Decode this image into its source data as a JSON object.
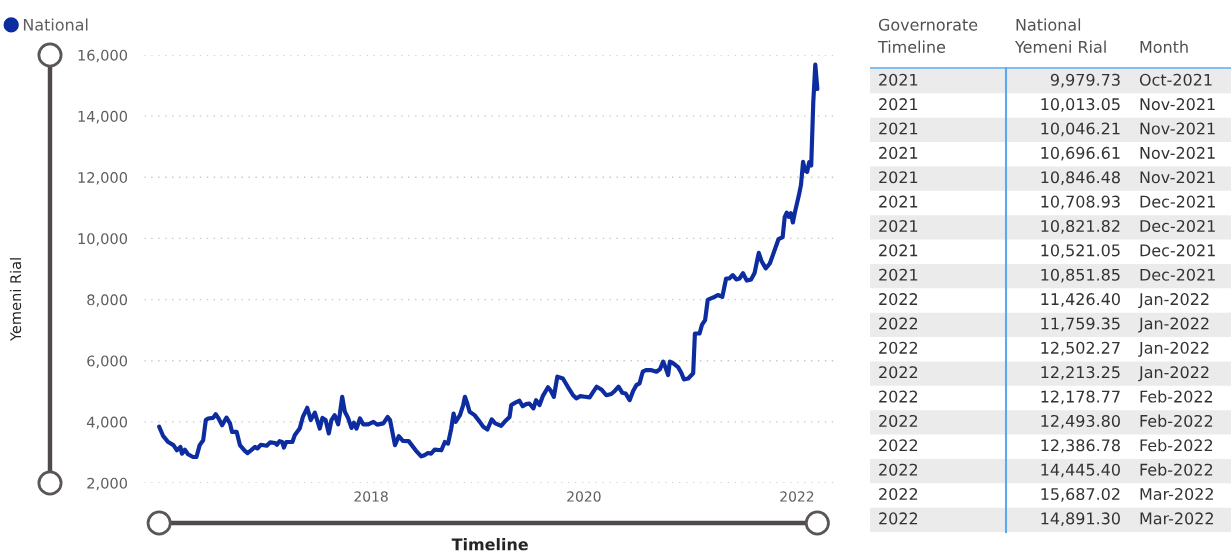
{
  "chart_data": [
    {
      "type": "line",
      "xlabel": "Timeline",
      "ylabel": "Yemeni Rial",
      "x": [
        "2016-01-05",
        "2016-01-19",
        "2016-02-05",
        "2016-02-23",
        "2016-03-06",
        "2016-03-18",
        "2016-03-23",
        "2016-04-02",
        "2016-04-13",
        "2016-04-30",
        "2016-05-12",
        "2016-05-23",
        "2016-06-04",
        "2016-06-13",
        "2016-06-21",
        "2016-07-08",
        "2016-07-17",
        "2016-07-25",
        "2016-08-08",
        "2016-08-23",
        "2016-09-04",
        "2016-09-11",
        "2016-09-27",
        "2016-10-08",
        "2016-10-25",
        "2016-11-03",
        "2016-11-15",
        "2016-11-29",
        "2016-12-07",
        "2016-12-19",
        "2017-01-08",
        "2017-01-20",
        "2017-02-06",
        "2017-02-12",
        "2017-02-21",
        "2017-03-02",
        "2017-03-08",
        "2017-03-16",
        "2017-04-06",
        "2017-04-14",
        "2017-05-01",
        "2017-05-12",
        "2017-05-27",
        "2017-06-08",
        "2017-06-22",
        "2017-07-09",
        "2017-07-18",
        "2017-07-29",
        "2017-08-09",
        "2017-08-18",
        "2017-08-29",
        "2017-09-10",
        "2017-09-16",
        "2017-09-24",
        "2017-10-03",
        "2017-10-14",
        "2017-10-26",
        "2017-11-03",
        "2017-11-12",
        "2017-11-24",
        "2017-12-05",
        "2017-12-22",
        "2018-01-09",
        "2018-01-22",
        "2018-02-12",
        "2018-02-27",
        "2018-03-07",
        "2018-03-16",
        "2018-03-24",
        "2018-04-06",
        "2018-04-20",
        "2018-05-10",
        "2018-06-03",
        "2018-06-22",
        "2018-07-03",
        "2018-07-15",
        "2018-07-26",
        "2018-08-07",
        "2018-08-30",
        "2018-09-11",
        "2018-09-22",
        "2018-10-03",
        "2018-10-11",
        "2018-10-18",
        "2018-11-02",
        "2018-11-13",
        "2018-11-19",
        "2018-11-27",
        "2018-12-05",
        "2018-12-22",
        "2019-01-09",
        "2019-01-21",
        "2019-02-04",
        "2019-02-19",
        "2019-03-03",
        "2019-03-23",
        "2019-04-04",
        "2019-04-21",
        "2019-04-27",
        "2019-05-11",
        "2019-05-25",
        "2019-06-05",
        "2019-06-17",
        "2019-06-28",
        "2019-07-12",
        "2019-07-21",
        "2019-08-02",
        "2019-08-13",
        "2019-08-31",
        "2019-09-08",
        "2019-09-20",
        "2019-10-02",
        "2019-10-21",
        "2019-11-08",
        "2019-11-25",
        "2019-12-06",
        "2019-12-20",
        "2020-01-04",
        "2020-01-21",
        "2020-02-02",
        "2020-02-14",
        "2020-03-01",
        "2020-03-18",
        "2020-04-04",
        "2020-04-16",
        "2020-04-29",
        "2020-05-12",
        "2020-05-23",
        "2020-06-06",
        "2020-06-18",
        "2020-06-29",
        "2020-07-10",
        "2020-07-21",
        "2020-08-01",
        "2020-08-20",
        "2020-09-06",
        "2020-09-18",
        "2020-09-29",
        "2020-10-08",
        "2020-10-16",
        "2020-10-22",
        "2020-11-03",
        "2020-11-20",
        "2020-12-01",
        "2020-12-09",
        "2020-12-24",
        "2021-01-10",
        "2021-01-16",
        "2021-02-01",
        "2021-02-09",
        "2021-02-20",
        "2021-03-01",
        "2021-03-12",
        "2021-03-24",
        "2021-04-05",
        "2021-04-20",
        "2021-05-03",
        "2021-05-14",
        "2021-05-26",
        "2021-06-07",
        "2021-06-18",
        "2021-06-30",
        "2021-07-13",
        "2021-07-28",
        "2021-08-09",
        "2021-08-23",
        "2021-09-01",
        "2021-09-16",
        "2021-09-30",
        "2021-10-30",
        "2021-11-06",
        "2021-11-13",
        "2021-11-20",
        "2021-11-27",
        "2021-12-04",
        "2021-12-11",
        "2021-12-18",
        "2021-12-25",
        "2022-01-08",
        "2022-01-15",
        "2022-01-22",
        "2022-01-29",
        "2022-02-05",
        "2022-02-12",
        "2022-02-19",
        "2022-02-26",
        "2022-03-05",
        "2022-03-12"
      ],
      "series": [
        {
          "name": "National",
          "color": "#0d2c9f",
          "values": [
            3840,
            3530,
            3340,
            3240,
            3070,
            3180,
            2960,
            3090,
            2940,
            2850,
            2850,
            3240,
            3400,
            4060,
            4110,
            4130,
            4250,
            4140,
            3890,
            4140,
            3950,
            3670,
            3670,
            3240,
            3050,
            2980,
            3070,
            3180,
            3130,
            3250,
            3220,
            3330,
            3310,
            3250,
            3370,
            3340,
            3160,
            3340,
            3340,
            3560,
            3780,
            4160,
            4460,
            4060,
            4300,
            3780,
            4130,
            4060,
            3620,
            4060,
            4220,
            3920,
            4270,
            4820,
            4330,
            4130,
            3800,
            3970,
            3780,
            4110,
            3920,
            3920,
            4000,
            3910,
            3950,
            4160,
            4060,
            3620,
            3240,
            3530,
            3380,
            3370,
            3070,
            2870,
            2910,
            2980,
            2960,
            3090,
            3070,
            3340,
            3290,
            3780,
            4270,
            4000,
            4220,
            4550,
            4820,
            4600,
            4330,
            4220,
            4000,
            3840,
            3750,
            4080,
            3950,
            3870,
            4000,
            4160,
            4550,
            4630,
            4690,
            4510,
            4580,
            4600,
            4440,
            4710,
            4550,
            4840,
            5130,
            5040,
            4820,
            5480,
            5420,
            5130,
            4870,
            4770,
            4840,
            4820,
            4800,
            4980,
            5150,
            5060,
            4870,
            4910,
            5010,
            5150,
            4950,
            4930,
            4710,
            5010,
            5200,
            5260,
            5640,
            5690,
            5690,
            5640,
            5720,
            5970,
            5750,
            5530,
            5970,
            5910,
            5780,
            5590,
            5390,
            5420,
            5590,
            6890,
            6890,
            7170,
            7330,
            7990,
            8040,
            8090,
            8150,
            8090,
            8690,
            8690,
            8800,
            8660,
            8690,
            8860,
            8620,
            8660,
            8880,
            9530,
            9270,
            9020,
            9180,
            9979.73,
            10013.05,
            10046.21,
            10696.61,
            10846.48,
            10708.93,
            10821.82,
            10521.05,
            10851.85,
            11426.4,
            11759.35,
            12502.27,
            12213.25,
            12178.77,
            12493.8,
            12386.78,
            14445.4,
            15687.02,
            14891.3
          ]
        }
      ],
      "xlim": [
        "2015-11-15",
        "2022-05-15"
      ],
      "xticks": [
        "2018",
        "2020",
        "2022"
      ],
      "ylim": [
        2000,
        16000
      ],
      "yticks": [
        {
          "value": 2000,
          "label": "2,000"
        },
        {
          "value": 4000,
          "label": "4,000"
        },
        {
          "value": 6000,
          "label": "6,000"
        },
        {
          "value": 8000,
          "label": "8,000"
        },
        {
          "value": 10000,
          "label": "10,000"
        },
        {
          "value": 12000,
          "label": "12,000"
        },
        {
          "value": 14000,
          "label": "14,000"
        },
        {
          "value": 16000,
          "label": "16,000"
        }
      ],
      "grid": "y",
      "legend": "top left",
      "line_style": "solid"
    },
    {
      "type": "other",
      "ylabel": "Month",
      "categories": [
        "Oct-2021",
        "Nov-2021",
        "Nov-2021",
        "Nov-2021",
        "Nov-2021",
        "Dec-2021",
        "Dec-2021",
        "Dec-2021",
        "Dec-2021",
        "Jan-2022",
        "Jan-2022",
        "Jan-2022",
        "Jan-2022",
        "Feb-2022",
        "Feb-2022",
        "Feb-2022",
        "Feb-2022",
        "Mar-2022",
        "Mar-2022"
      ],
      "series": [
        {
          "name": "Governorate Timeline",
          "values": [
            2021,
            2021,
            2021,
            2021,
            2021,
            2021,
            2021,
            2021,
            2021,
            2022,
            2022,
            2022,
            2022,
            2022,
            2022,
            2022,
            2022,
            2022,
            2022
          ]
        },
        {
          "name": "National Yemeni Rial",
          "values": [
            9979.73,
            10013.05,
            10046.21,
            10696.61,
            10846.48,
            10708.93,
            10821.82,
            10521.05,
            10851.85,
            11426.4,
            11759.35,
            12502.27,
            12213.25,
            12178.77,
            12493.8,
            12386.78,
            14445.4,
            15687.02,
            14891.3
          ],
          "value_labels": [
            "9,979.73",
            "10,013.05",
            "10,046.21",
            "10,696.61",
            "10,846.48",
            "10,708.93",
            "10,821.82",
            "10,521.05",
            "10,851.85",
            "11,426.40",
            "11,759.35",
            "12,502.27",
            "12,213.25",
            "12,178.77",
            "12,493.80",
            "12,386.78",
            "14,445.40",
            "15,687.02",
            "14,891.30"
          ]
        }
      ],
      "data_labels": true
    }
  ]
}
